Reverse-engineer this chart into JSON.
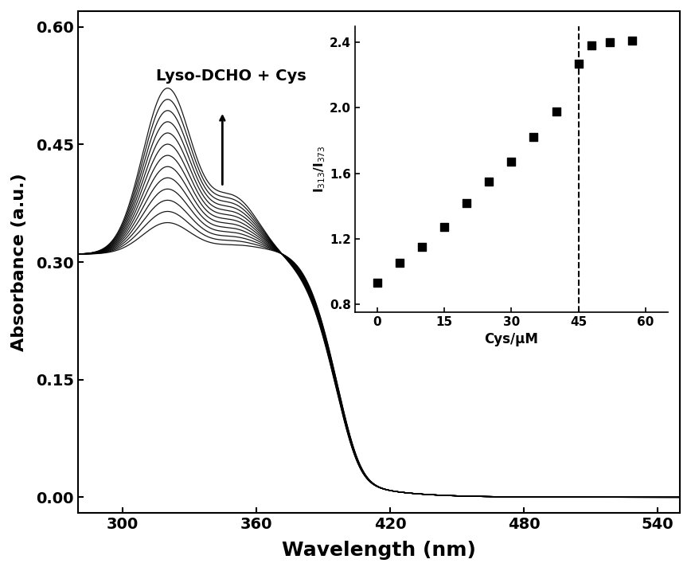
{
  "title": "",
  "xlabel": "Wavelength (nm)",
  "ylabel": "Absorbance (a.u.)",
  "xlim": [
    280,
    550
  ],
  "ylim": [
    -0.02,
    0.62
  ],
  "xticks": [
    300,
    360,
    420,
    480,
    540
  ],
  "yticks": [
    0.0,
    0.15,
    0.3,
    0.45,
    0.6
  ],
  "label_text": "Lyso-DCHO + Cys",
  "num_curves": 13,
  "background_color": "#ffffff",
  "curve_color": "#000000",
  "inset": {
    "xlim": [
      -5,
      65
    ],
    "ylim": [
      0.75,
      2.5
    ],
    "xticks": [
      0,
      15,
      30,
      45,
      60
    ],
    "yticks": [
      0.8,
      1.2,
      1.6,
      2.0,
      2.4
    ],
    "xlabel": "Cys/μM",
    "ylabel": "I$_{313}$/I$_{373}$",
    "dashed_x": 45,
    "scatter_x": [
      0,
      5,
      10,
      15,
      20,
      25,
      30,
      35,
      40,
      45,
      48,
      52,
      57
    ],
    "scatter_y": [
      0.93,
      1.05,
      1.15,
      1.27,
      1.42,
      1.55,
      1.67,
      1.82,
      1.98,
      2.27,
      2.38,
      2.4,
      2.41
    ]
  }
}
